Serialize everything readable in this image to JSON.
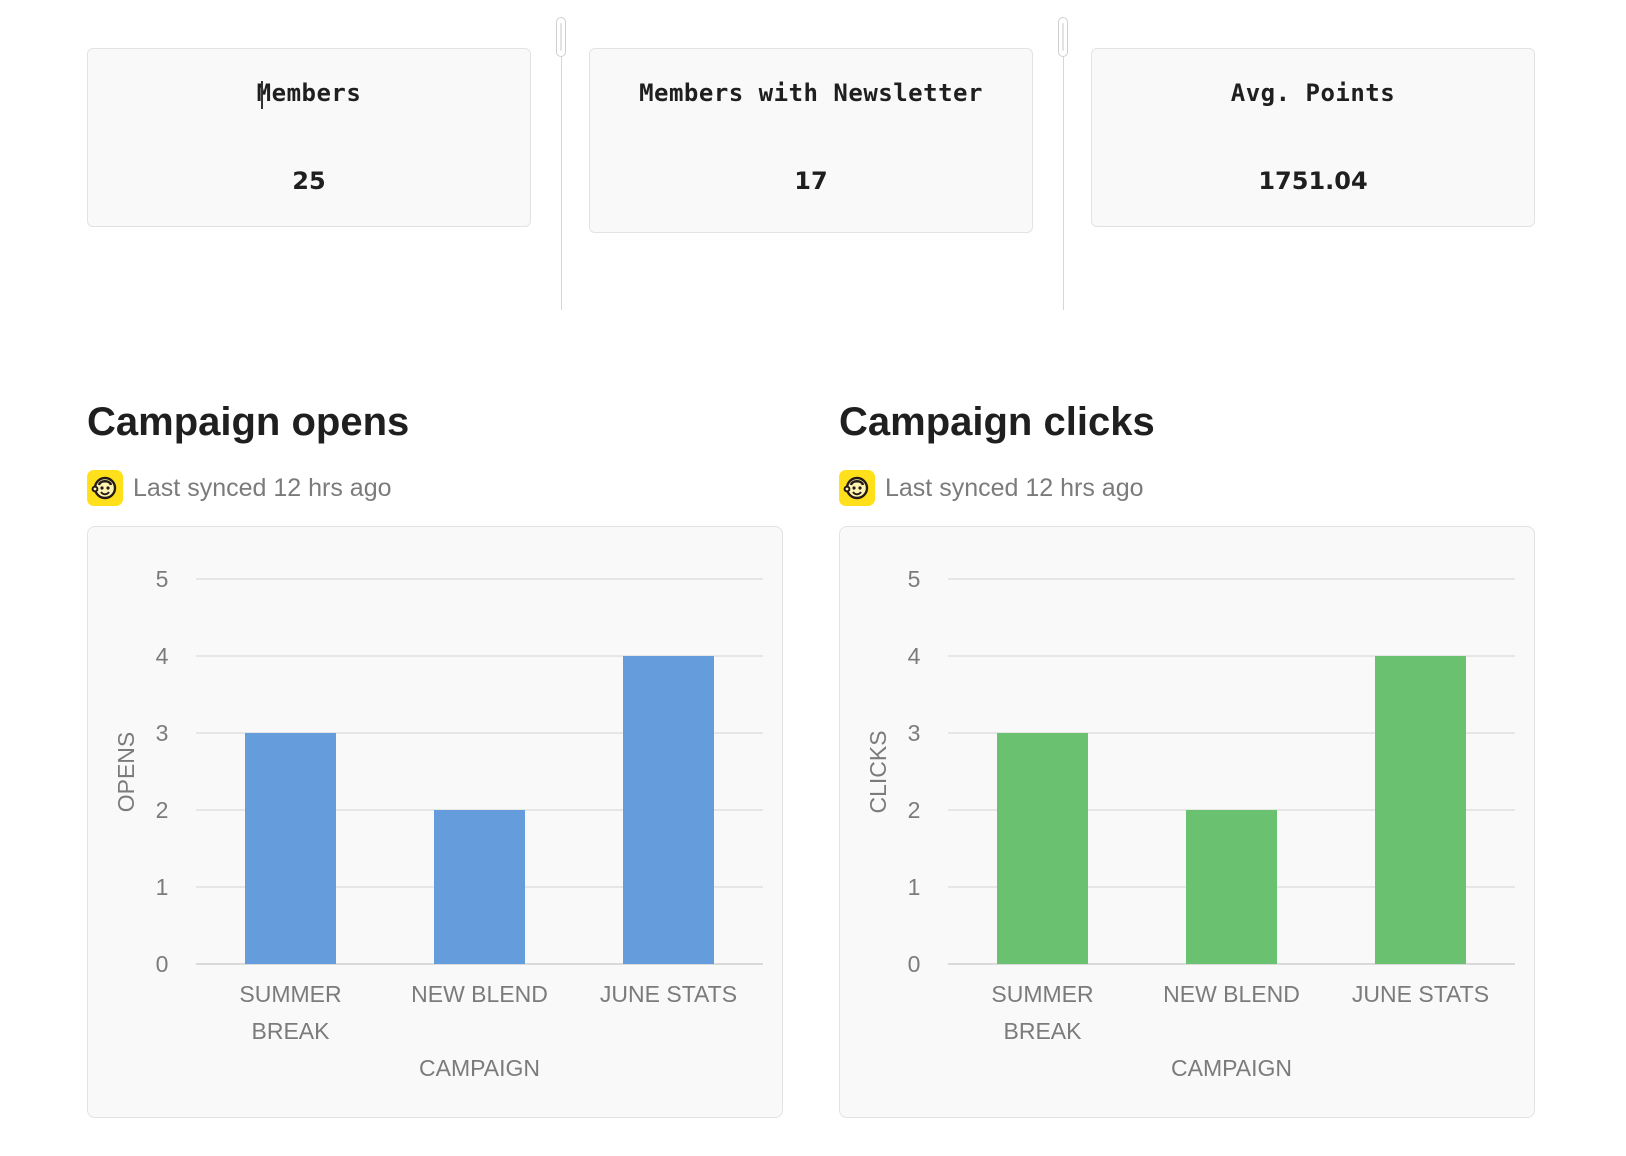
{
  "stats": [
    {
      "label": "Members",
      "value": "25"
    },
    {
      "label": "Members with Newsletter",
      "value": "17"
    },
    {
      "label": "Avg. Points",
      "value": "1751.04"
    }
  ],
  "sync_text": "Last synced 12 hrs ago",
  "sync_icon": "mailchimp-icon",
  "chart_data": [
    {
      "type": "bar",
      "title": "Campaign opens",
      "categories": [
        [
          "SUMMER",
          "BREAK"
        ],
        [
          "NEW BLEND"
        ],
        [
          "JUNE STATS"
        ]
      ],
      "values": [
        3,
        2,
        4
      ],
      "xlabel": "CAMPAIGN",
      "ylabel": "OPENS",
      "ylim": [
        0,
        5
      ],
      "yticks": [
        0,
        1,
        2,
        3,
        4,
        5
      ],
      "grid": true,
      "color": "#659ddc"
    },
    {
      "type": "bar",
      "title": "Campaign clicks",
      "categories": [
        [
          "SUMMER",
          "BREAK"
        ],
        [
          "NEW BLEND"
        ],
        [
          "JUNE STATS"
        ]
      ],
      "values": [
        3,
        2,
        4
      ],
      "xlabel": "CAMPAIGN",
      "ylabel": "CLICKS",
      "ylim": [
        0,
        5
      ],
      "yticks": [
        0,
        1,
        2,
        3,
        4,
        5
      ],
      "grid": true,
      "color": "#6ac170"
    }
  ]
}
